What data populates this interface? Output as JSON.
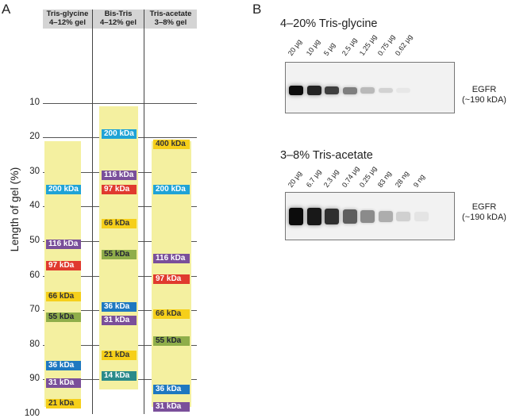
{
  "panels": {
    "a_letter": "A",
    "b_letter": "B"
  },
  "colors": {
    "header_bg": "#d4d4d4",
    "gel_band": "#f4f0a0",
    "cyan": "#1fa3d6",
    "purple": "#7a4f9a",
    "red": "#e03a2e",
    "yellow": "#f6cf1a",
    "olive": "#8fae4a",
    "blue": "#1e78c0",
    "teal": "#2a8a8a"
  },
  "gel_chart": {
    "ylabel": "Length of gel  (%)",
    "yticks": [
      10,
      20,
      30,
      40,
      50,
      60,
      70,
      80,
      90,
      100
    ],
    "ylim": [
      0,
      100
    ],
    "columns": [
      {
        "name_line1": "Tris-glycine",
        "name_line2": "4–12% gel",
        "gel_range": [
          21,
          98
        ],
        "markers": [
          {
            "label": "200 kDa",
            "pos": 35,
            "color": "cyan"
          },
          {
            "label": "116 kDa",
            "pos": 51,
            "color": "purple"
          },
          {
            "label": "97 kDa",
            "pos": 57,
            "color": "red"
          },
          {
            "label": "66 kDa",
            "pos": 66,
            "color": "yellow"
          },
          {
            "label": "55 kDa",
            "pos": 72,
            "color": "olive"
          },
          {
            "label": "36 kDa",
            "pos": 86,
            "color": "blue"
          },
          {
            "label": "31 kDa",
            "pos": 91,
            "color": "purple"
          },
          {
            "label": "21 kDa",
            "pos": 97,
            "color": "yellow"
          }
        ]
      },
      {
        "name_line1": "Bis-Tris",
        "name_line2": "4–12% gel",
        "gel_range": [
          11,
          93
        ],
        "markers": [
          {
            "label": "200 kDa",
            "pos": 19,
            "color": "cyan"
          },
          {
            "label": "116 kDa",
            "pos": 31,
            "color": "purple"
          },
          {
            "label": "97 kDa",
            "pos": 35,
            "color": "red"
          },
          {
            "label": "66 kDa",
            "pos": 45,
            "color": "yellow"
          },
          {
            "label": "55 kDa",
            "pos": 54,
            "color": "olive"
          },
          {
            "label": "36 kDa",
            "pos": 69,
            "color": "blue"
          },
          {
            "label": "31 kDa",
            "pos": 73,
            "color": "purple"
          },
          {
            "label": "21 kDa",
            "pos": 83,
            "color": "yellow"
          },
          {
            "label": "14 kDa",
            "pos": 89,
            "color": "teal"
          }
        ]
      },
      {
        "name_line1": "Tris-acetate",
        "name_line2": "3–8% gel",
        "gel_range": [
          21,
          98
        ],
        "markers": [
          {
            "label": "400 kDa",
            "pos": 22,
            "color": "yellow"
          },
          {
            "label": "200 kDa",
            "pos": 35,
            "color": "cyan"
          },
          {
            "label": "116 kDa",
            "pos": 55,
            "color": "purple"
          },
          {
            "label": "97 kDa",
            "pos": 61,
            "color": "red"
          },
          {
            "label": "66 kDa",
            "pos": 71,
            "color": "yellow"
          },
          {
            "label": "55 kDa",
            "pos": 79,
            "color": "olive"
          },
          {
            "label": "36 kDa",
            "pos": 93,
            "color": "blue"
          },
          {
            "label": "31 kDa",
            "pos": 98,
            "color": "purple"
          }
        ]
      }
    ]
  },
  "blots": [
    {
      "title": "4–20% Tris-glycine",
      "lanes": [
        "20 µg",
        "10 µg",
        "5 µg",
        "2.5 µg",
        "1.25 µg",
        "0.75 µg",
        "0.62 µg"
      ],
      "intensities": [
        1.0,
        0.9,
        0.78,
        0.5,
        0.25,
        0.14,
        0.05
      ],
      "protein_line1": "EGFR",
      "protein_line2": "(~190 kDA)"
    },
    {
      "title": "3–8% Tris-acetate",
      "lanes": [
        "20 µg",
        "6.7 µg",
        "2.3 µg",
        "0.74 µg",
        "0.25 µg",
        "83 ng",
        "28 ng",
        "9 ng"
      ],
      "intensities": [
        1.0,
        0.95,
        0.85,
        0.65,
        0.45,
        0.3,
        0.15,
        0.06
      ],
      "protein_line1": "EGFR",
      "protein_line2": "(~190 kDA)"
    }
  ]
}
